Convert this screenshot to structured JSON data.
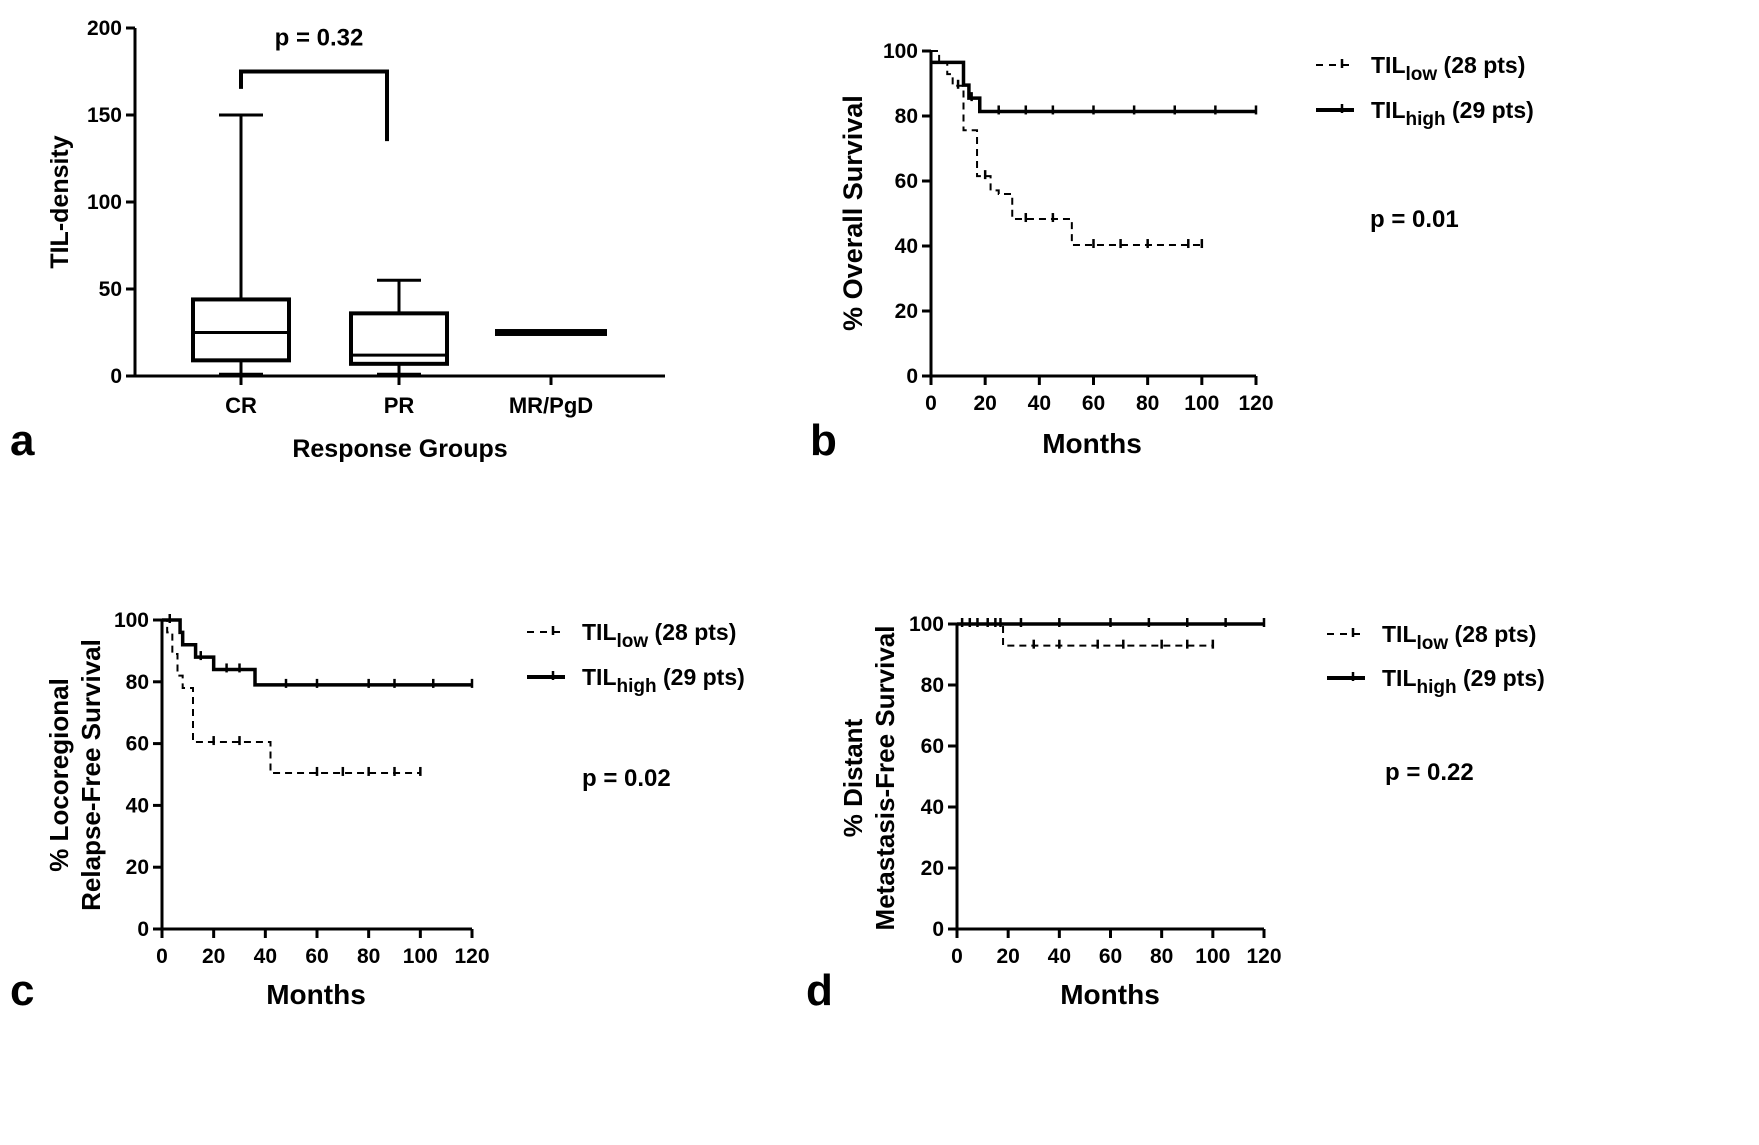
{
  "chart_data": [
    {
      "id": "a",
      "type": "boxplot",
      "panel_label": "a",
      "title": "",
      "xlabel": "Response Groups",
      "ylabel": "TIL-density",
      "ylim": [
        0,
        200
      ],
      "yticks": [
        "0",
        "50",
        "100",
        "150",
        "200"
      ],
      "categories": [
        "CR",
        "PR",
        "MR/PgD"
      ],
      "boxes": [
        {
          "category": "CR",
          "min": 1,
          "q1": 9,
          "median": 25,
          "q3": 44,
          "max": 150
        },
        {
          "category": "PR",
          "min": 1,
          "q1": 7,
          "median": 12,
          "q3": 36,
          "max": 55
        },
        {
          "category": "MR/PgD",
          "min": 23,
          "q1": 23,
          "median": 25,
          "q3": 27,
          "max": 27
        }
      ],
      "annotation": {
        "text": "p = 0.32",
        "from": "CR",
        "to": "PR",
        "left_y": 165,
        "top_y": 175,
        "right_y": 135
      }
    },
    {
      "id": "b",
      "type": "line",
      "subtype": "kaplan-meier",
      "panel_label": "b",
      "xlabel": "Months",
      "ylabel": "% Overall Survival",
      "xlim": [
        0,
        120
      ],
      "ylim": [
        0,
        100
      ],
      "xticks": [
        "0",
        "20",
        "40",
        "60",
        "80",
        "100",
        "120"
      ],
      "yticks": [
        "0",
        "20",
        "40",
        "60",
        "80",
        "100"
      ],
      "legend": {
        "position": "top-right",
        "entries": [
          {
            "base": "TIL",
            "sub": "low",
            "suffix": " (28 pts)",
            "style": "dashed"
          },
          {
            "base": "TIL",
            "sub": "high",
            "suffix": " (29 pts)",
            "style": "solid"
          }
        ]
      },
      "pvalue": "p = 0.01",
      "series": [
        {
          "name": "TIL low (28 pts)",
          "style": "dashed",
          "points": [
            [
              0,
              100
            ],
            [
              3,
              100
            ],
            [
              3,
              96.4
            ],
            [
              6,
              96.4
            ],
            [
              6,
              92.9
            ],
            [
              8,
              92.9
            ],
            [
              8,
              89.3
            ],
            [
              12,
              89.3
            ],
            [
              12,
              75.6
            ],
            [
              17,
              75.6
            ],
            [
              17,
              61.5
            ],
            [
              22,
              61.5
            ],
            [
              22,
              57.1
            ],
            [
              25,
              57.1
            ],
            [
              25,
              56.0
            ],
            [
              30,
              56.0
            ],
            [
              30,
              48.3
            ],
            [
              52,
              48.3
            ],
            [
              52,
              40.3
            ],
            [
              100,
              40.3
            ]
          ],
          "censors": [
            [
              10,
              89.3
            ],
            [
              20,
              61.5
            ],
            [
              35,
              48.3
            ],
            [
              45,
              48.3
            ],
            [
              60,
              40.3
            ],
            [
              70,
              40.3
            ],
            [
              80,
              40.3
            ],
            [
              95,
              40.3
            ],
            [
              100,
              40.3
            ]
          ]
        },
        {
          "name": "TIL high (29 pts)",
          "style": "solid",
          "points": [
            [
              0,
              96.5
            ],
            [
              12,
              96.5
            ],
            [
              12,
              89.5
            ],
            [
              14,
              89.5
            ],
            [
              14,
              85.5
            ],
            [
              18,
              85.5
            ],
            [
              18,
              81.4
            ],
            [
              120,
              81.4
            ]
          ],
          "censors": [
            [
              15,
              85.5
            ],
            [
              25,
              81.4
            ],
            [
              35,
              81.4
            ],
            [
              45,
              81.4
            ],
            [
              60,
              81.4
            ],
            [
              75,
              81.4
            ],
            [
              90,
              81.4
            ],
            [
              105,
              81.4
            ],
            [
              120,
              81.4
            ]
          ]
        }
      ]
    },
    {
      "id": "c",
      "type": "line",
      "subtype": "kaplan-meier",
      "panel_label": "c",
      "xlabel": "Months",
      "ylabel_lines": [
        "% Locoregional",
        "Relapse-Free Survival"
      ],
      "xlim": [
        0,
        120
      ],
      "ylim": [
        0,
        100
      ],
      "xticks": [
        "0",
        "20",
        "40",
        "60",
        "80",
        "100",
        "120"
      ],
      "yticks": [
        "0",
        "20",
        "40",
        "60",
        "80",
        "100"
      ],
      "legend": {
        "position": "top-right",
        "entries": [
          {
            "base": "TIL",
            "sub": "low",
            "suffix": " (28 pts)",
            "style": "dashed"
          },
          {
            "base": "TIL",
            "sub": "high",
            "suffix": " (29 pts)",
            "style": "solid"
          }
        ]
      },
      "pvalue": "p = 0.02",
      "series": [
        {
          "name": "TIL low (28 pts)",
          "style": "dashed",
          "points": [
            [
              0,
              100
            ],
            [
              2,
              100
            ],
            [
              2,
              96
            ],
            [
              4,
              96
            ],
            [
              4,
              89
            ],
            [
              6,
              89
            ],
            [
              6,
              82
            ],
            [
              8,
              82
            ],
            [
              8,
              78
            ],
            [
              12,
              78
            ],
            [
              12,
              60.5
            ],
            [
              42,
              60.5
            ],
            [
              42,
              50.5
            ],
            [
              100,
              50.5
            ]
          ],
          "censors": [
            [
              20,
              60.5
            ],
            [
              30,
              60.5
            ],
            [
              60,
              50.5
            ],
            [
              70,
              50.5
            ],
            [
              80,
              50.5
            ],
            [
              90,
              50.5
            ],
            [
              100,
              50.5
            ]
          ]
        },
        {
          "name": "TIL high (29 pts)",
          "style": "solid",
          "points": [
            [
              0,
              100
            ],
            [
              7,
              100
            ],
            [
              7,
              96
            ],
            [
              8,
              96
            ],
            [
              8,
              92
            ],
            [
              13,
              92
            ],
            [
              13,
              88
            ],
            [
              20,
              88
            ],
            [
              20,
              84
            ],
            [
              36,
              84
            ],
            [
              36,
              79
            ],
            [
              120,
              79
            ]
          ],
          "censors": [
            [
              3,
              100
            ],
            [
              15,
              88
            ],
            [
              25,
              84
            ],
            [
              30,
              84
            ],
            [
              48,
              79
            ],
            [
              60,
              79
            ],
            [
              80,
              79
            ],
            [
              90,
              79
            ],
            [
              105,
              79
            ],
            [
              120,
              79
            ]
          ]
        }
      ]
    },
    {
      "id": "d",
      "type": "line",
      "subtype": "kaplan-meier",
      "panel_label": "d",
      "xlabel": "Months",
      "ylabel_lines": [
        "% Distant",
        "Metastasis-Free Survival"
      ],
      "xlim": [
        0,
        120
      ],
      "ylim": [
        0,
        100
      ],
      "xticks": [
        "0",
        "20",
        "40",
        "60",
        "80",
        "100",
        "120"
      ],
      "yticks": [
        "0",
        "20",
        "40",
        "60",
        "80",
        "100"
      ],
      "legend": {
        "position": "top-right",
        "entries": [
          {
            "base": "TIL",
            "sub": "low",
            "suffix": " (28 pts)",
            "style": "dashed"
          },
          {
            "base": "TIL",
            "sub": "high",
            "suffix": " (29 pts)",
            "style": "solid"
          }
        ]
      },
      "pvalue": "p = 0.22",
      "series": [
        {
          "name": "TIL low (28 pts)",
          "style": "dashed",
          "points": [
            [
              0,
              100
            ],
            [
              18,
              100
            ],
            [
              18,
              92.9
            ],
            [
              100,
              92.9
            ]
          ],
          "censors": [
            [
              30,
              92.9
            ],
            [
              40,
              92.9
            ],
            [
              55,
              92.9
            ],
            [
              65,
              92.9
            ],
            [
              80,
              92.9
            ],
            [
              90,
              92.9
            ],
            [
              100,
              92.9
            ]
          ]
        },
        {
          "name": "TIL high (29 pts)",
          "style": "solid",
          "points": [
            [
              0,
              100
            ],
            [
              120,
              100
            ]
          ],
          "censors": [
            [
              2,
              100
            ],
            [
              5,
              100
            ],
            [
              8,
              100
            ],
            [
              12,
              100
            ],
            [
              15,
              100
            ],
            [
              17,
              100
            ],
            [
              25,
              100
            ],
            [
              40,
              100
            ],
            [
              60,
              100
            ],
            [
              75,
              100
            ],
            [
              90,
              100
            ],
            [
              105,
              100
            ],
            [
              120,
              100
            ]
          ]
        }
      ]
    }
  ]
}
